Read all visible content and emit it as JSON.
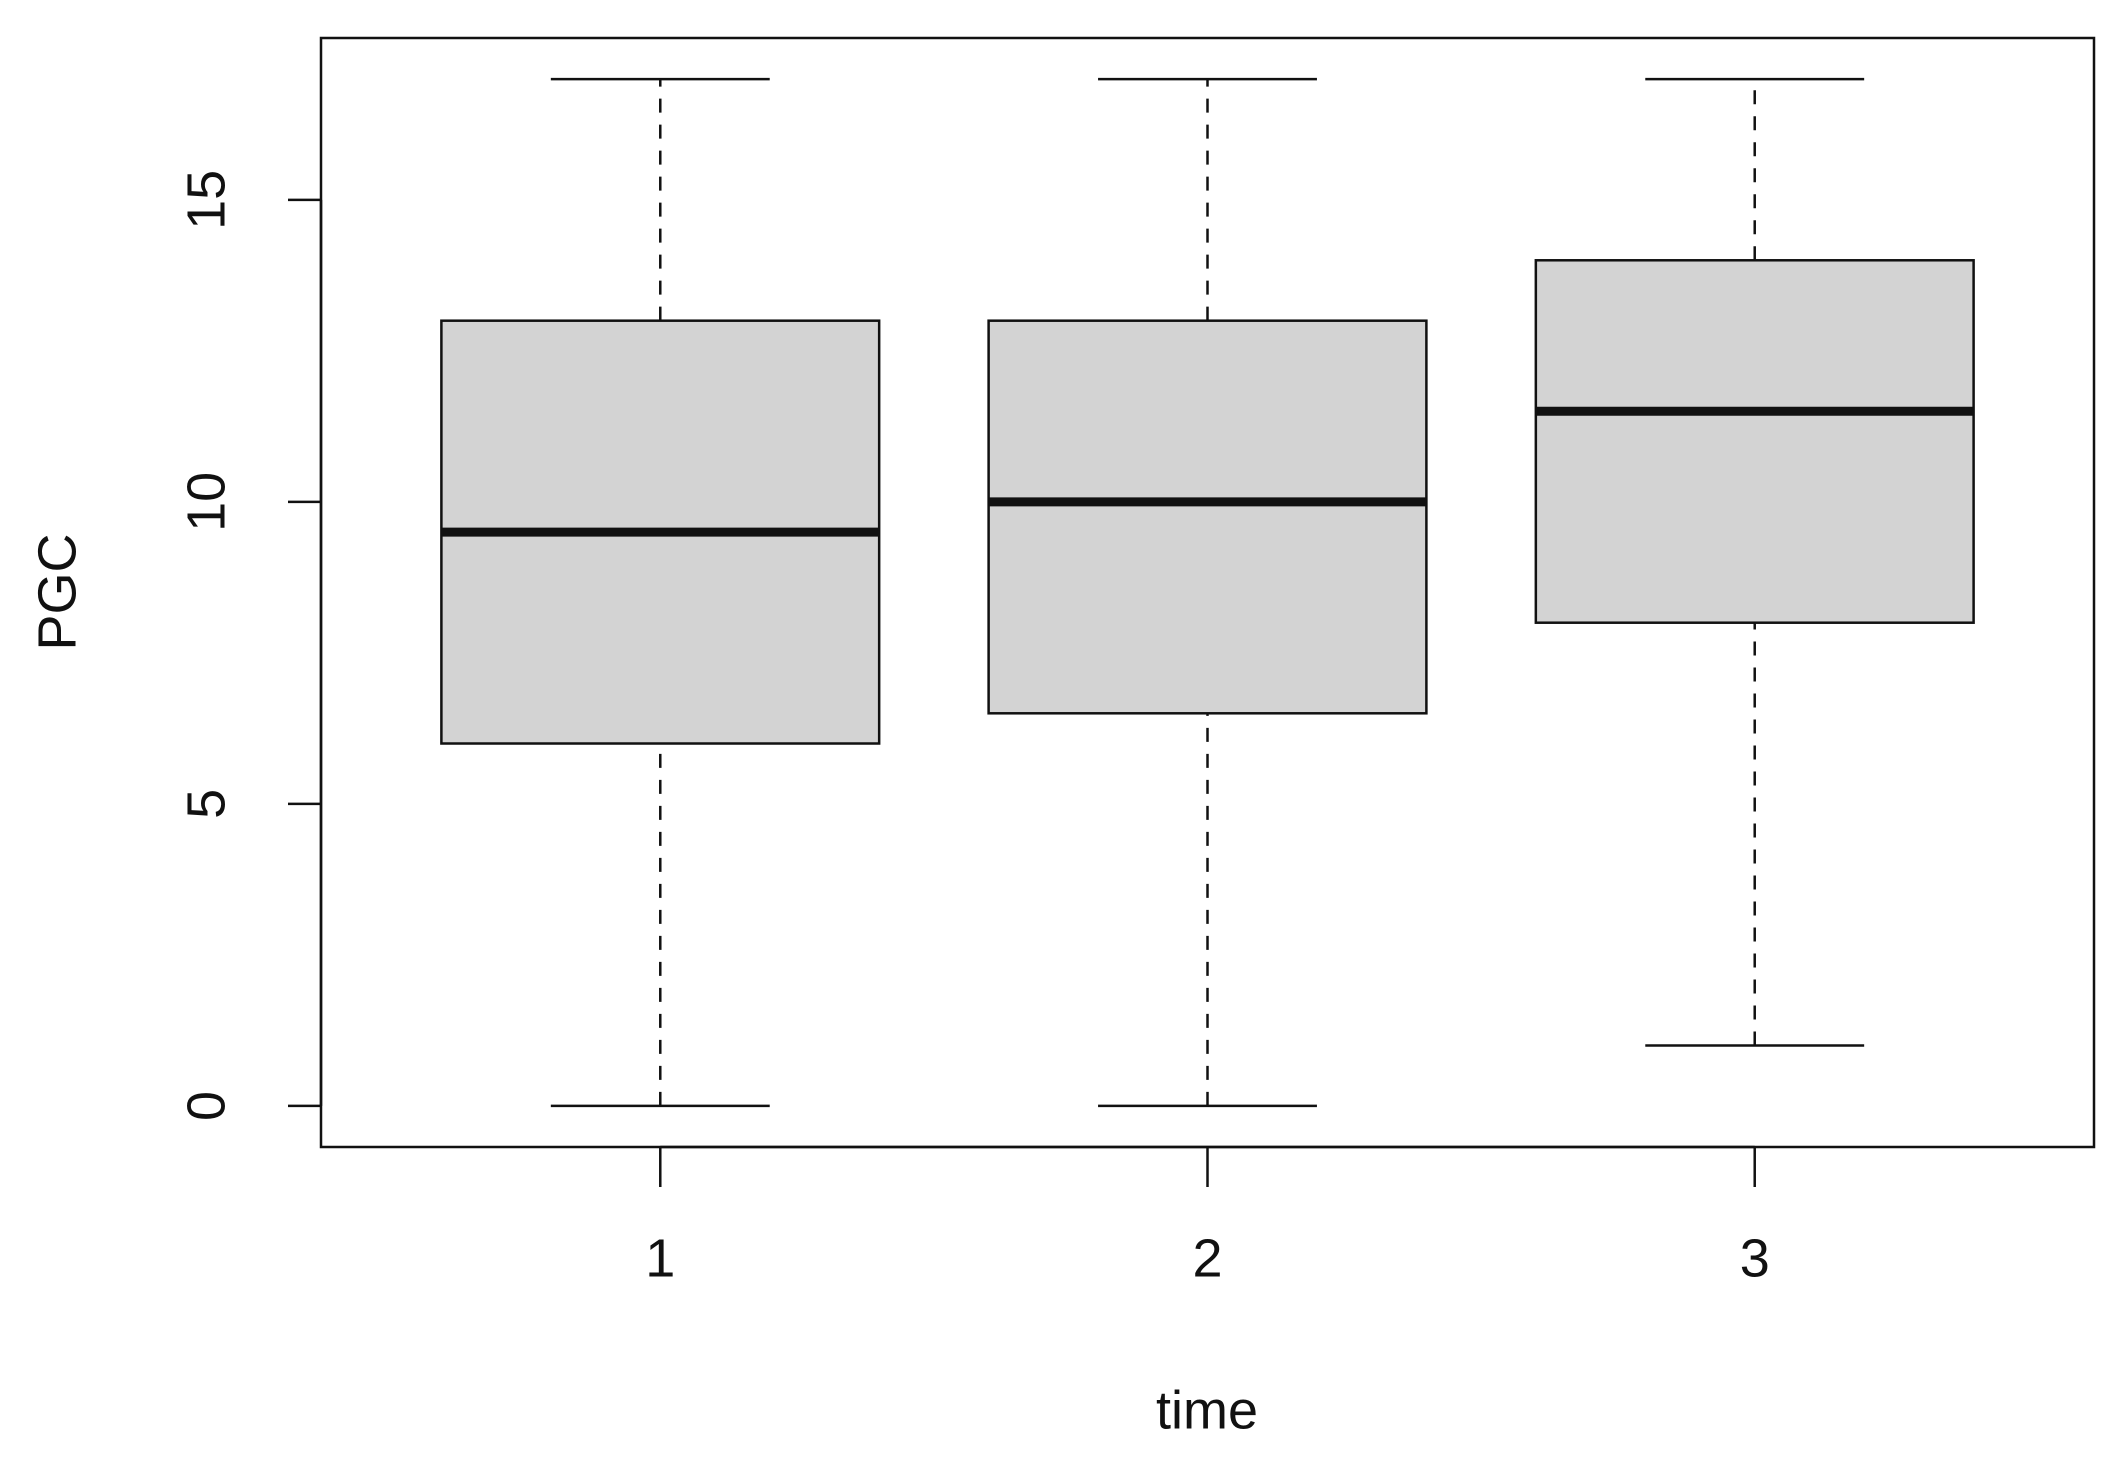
{
  "chart_data": {
    "type": "box",
    "x_label": "time",
    "y_label": "PGC",
    "categories": [
      "1",
      "2",
      "3"
    ],
    "min": [
      0,
      0,
      1
    ],
    "q1": [
      6,
      6.5,
      8
    ],
    "median": [
      9.5,
      10,
      11.5
    ],
    "q3": [
      13,
      13,
      14
    ],
    "max": [
      17,
      17,
      17
    ],
    "color": "#d3d3d3",
    "ylim": [
      -0.68,
      17.68
    ],
    "yticks": [
      0,
      5,
      10,
      15
    ]
  }
}
